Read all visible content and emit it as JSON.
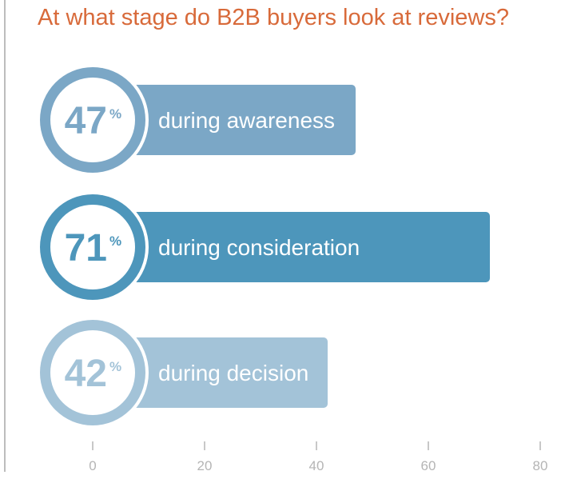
{
  "chart_data": {
    "type": "bar",
    "orientation": "horizontal",
    "title": "At what stage do B2B buyers look at reviews?",
    "categories": [
      "during awareness",
      "during consideration",
      "during decision"
    ],
    "values": [
      47,
      71,
      42
    ],
    "value_suffix": "%",
    "xlim": [
      0,
      80
    ],
    "x_ticks": [
      0,
      20,
      40,
      60,
      80
    ],
    "grid": false,
    "legend": "none",
    "colors": [
      "#7ba7c6",
      "#4d96bb",
      "#a3c3d8"
    ],
    "title_color": "#d86a3a"
  }
}
